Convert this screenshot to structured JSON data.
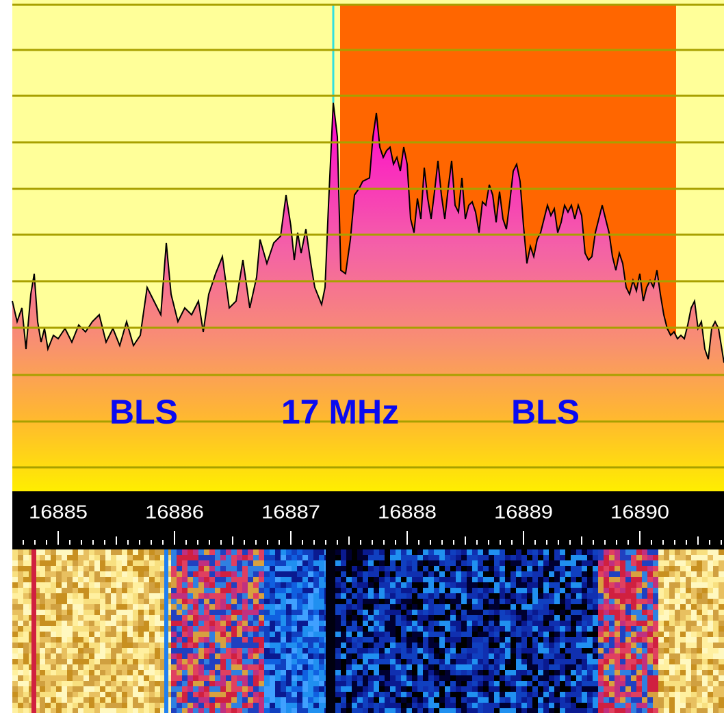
{
  "spectrum": {
    "labels": [
      "BLS",
      "17 MHz",
      "BLS"
    ]
  },
  "frequency_axis": {
    "labels": [
      "16885",
      "16886",
      "16887",
      "16888",
      "16889",
      "16890"
    ]
  }
}
